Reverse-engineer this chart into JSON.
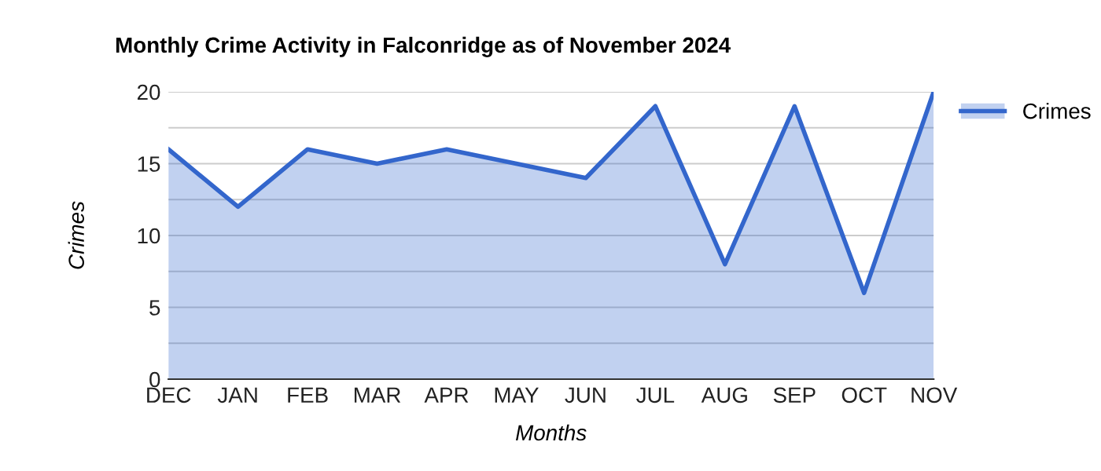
{
  "chart_data": {
    "type": "area",
    "title": "Monthly Crime Activity in Falconridge as of November 2024",
    "xlabel": "Months",
    "ylabel": "Crimes",
    "categories": [
      "DEC",
      "JAN",
      "FEB",
      "MAR",
      "APR",
      "MAY",
      "JUN",
      "JUL",
      "AUG",
      "SEP",
      "OCT",
      "NOV"
    ],
    "series": [
      {
        "name": "Crimes",
        "color": "#3366cc",
        "values": [
          16,
          12,
          16,
          15,
          16,
          15,
          14,
          19,
          8,
          19,
          6,
          20
        ]
      }
    ],
    "ylim": [
      0,
      20
    ],
    "yticks": [
      0,
      {
        "value": 2.5,
        "label": null
      },
      5,
      {
        "value": 7.5,
        "label": null
      },
      10,
      {
        "value": 12.5,
        "label": null
      },
      15,
      {
        "value": 17.5,
        "label": null
      },
      20
    ],
    "grid": "y",
    "legend": "right"
  }
}
